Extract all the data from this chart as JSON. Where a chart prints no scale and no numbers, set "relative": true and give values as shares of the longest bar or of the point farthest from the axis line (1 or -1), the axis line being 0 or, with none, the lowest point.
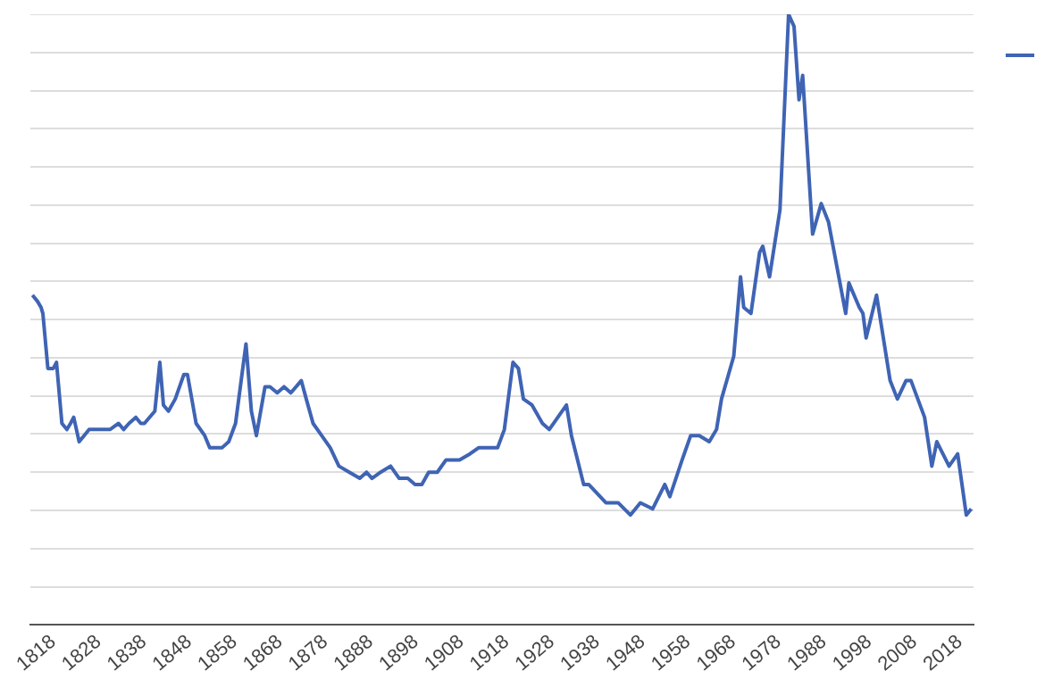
{
  "chart_data": {
    "type": "line",
    "relative": true,
    "grid": "y",
    "marker": "none",
    "line_style": "solid",
    "xlim": [
      1813,
      2021
    ],
    "xticks": [
      1818,
      1828,
      1838,
      1848,
      1858,
      1868,
      1878,
      1888,
      1898,
      1908,
      1918,
      1928,
      1938,
      1948,
      1958,
      1968,
      1978,
      1988,
      1998,
      2008,
      2018
    ],
    "series": [
      {
        "color": "#3f64b4",
        "x": [
          1813.4,
          1814.5,
          1815.3,
          1815.7,
          1816.8,
          1818.0,
          1818.7,
          1819.9,
          1821.0,
          1821.8,
          1822.5,
          1823.7,
          1824.8,
          1825.9,
          1826.7,
          1827.5,
          1828.6,
          1829.4,
          1830.5,
          1832.4,
          1833.5,
          1834.7,
          1836.2,
          1837.3,
          1838.1,
          1840.4,
          1841.5,
          1842.3,
          1843.4,
          1844.9,
          1846.8,
          1847.6,
          1849.5,
          1851.4,
          1852.5,
          1854.1,
          1855.2,
          1856.7,
          1858.2,
          1860.5,
          1861.7,
          1862.8,
          1864.7,
          1865.8,
          1867.4,
          1868.9,
          1870.4,
          1872.7,
          1873.8,
          1875.3,
          1877.2,
          1879.1,
          1881.0,
          1883.3,
          1885.6,
          1887.1,
          1888.3,
          1890.2,
          1892.4,
          1894.3,
          1896.2,
          1897.8,
          1899.3,
          1900.8,
          1902.7,
          1904.6,
          1906.1,
          1907.6,
          1909.9,
          1911.8,
          1913.7,
          1916.0,
          1917.5,
          1919.4,
          1920.6,
          1921.7,
          1923.6,
          1925.9,
          1927.4,
          1931.2,
          1932.3,
          1935.0,
          1936.1,
          1939.9,
          1942.6,
          1945.3,
          1947.5,
          1950.2,
          1952.9,
          1954.0,
          1956.7,
          1958.6,
          1960.5,
          1962.7,
          1964.3,
          1965.4,
          1968.1,
          1969.6,
          1970.3,
          1971.9,
          1973.8,
          1974.5,
          1976.0,
          1978.3,
          1980.2,
          1981.4,
          1982.5,
          1983.3,
          1985.5,
          1987.4,
          1989.0,
          1992.8,
          1993.5,
          1995.8,
          1996.6,
          1997.3,
          1999.6,
          2002.6,
          2004.2,
          2006.1,
          2007.2,
          2010.2,
          2011.8,
          2012.9,
          2015.6,
          2017.5,
          2019.4,
          2020.5
        ],
        "values": [
          0.54,
          0.53,
          0.52,
          0.51,
          0.42,
          0.42,
          0.43,
          0.33,
          0.32,
          0.33,
          0.34,
          0.3,
          0.31,
          0.32,
          0.32,
          0.32,
          0.32,
          0.32,
          0.32,
          0.33,
          0.32,
          0.33,
          0.34,
          0.33,
          0.33,
          0.35,
          0.43,
          0.36,
          0.35,
          0.37,
          0.41,
          0.41,
          0.33,
          0.31,
          0.29,
          0.29,
          0.29,
          0.3,
          0.33,
          0.46,
          0.35,
          0.31,
          0.39,
          0.39,
          0.38,
          0.39,
          0.38,
          0.4,
          0.37,
          0.33,
          0.31,
          0.29,
          0.26,
          0.25,
          0.24,
          0.25,
          0.24,
          0.25,
          0.26,
          0.24,
          0.24,
          0.23,
          0.23,
          0.25,
          0.25,
          0.27,
          0.27,
          0.27,
          0.28,
          0.29,
          0.29,
          0.29,
          0.32,
          0.43,
          0.42,
          0.37,
          0.36,
          0.33,
          0.32,
          0.36,
          0.31,
          0.23,
          0.23,
          0.2,
          0.2,
          0.18,
          0.2,
          0.19,
          0.23,
          0.21,
          0.27,
          0.31,
          0.31,
          0.3,
          0.32,
          0.37,
          0.44,
          0.57,
          0.52,
          0.51,
          0.61,
          0.62,
          0.57,
          0.68,
          1.0,
          0.98,
          0.86,
          0.9,
          0.64,
          0.69,
          0.66,
          0.51,
          0.56,
          0.52,
          0.51,
          0.47,
          0.54,
          0.4,
          0.37,
          0.4,
          0.4,
          0.34,
          0.26,
          0.3,
          0.26,
          0.28,
          0.18,
          0.19
        ]
      }
    ]
  }
}
